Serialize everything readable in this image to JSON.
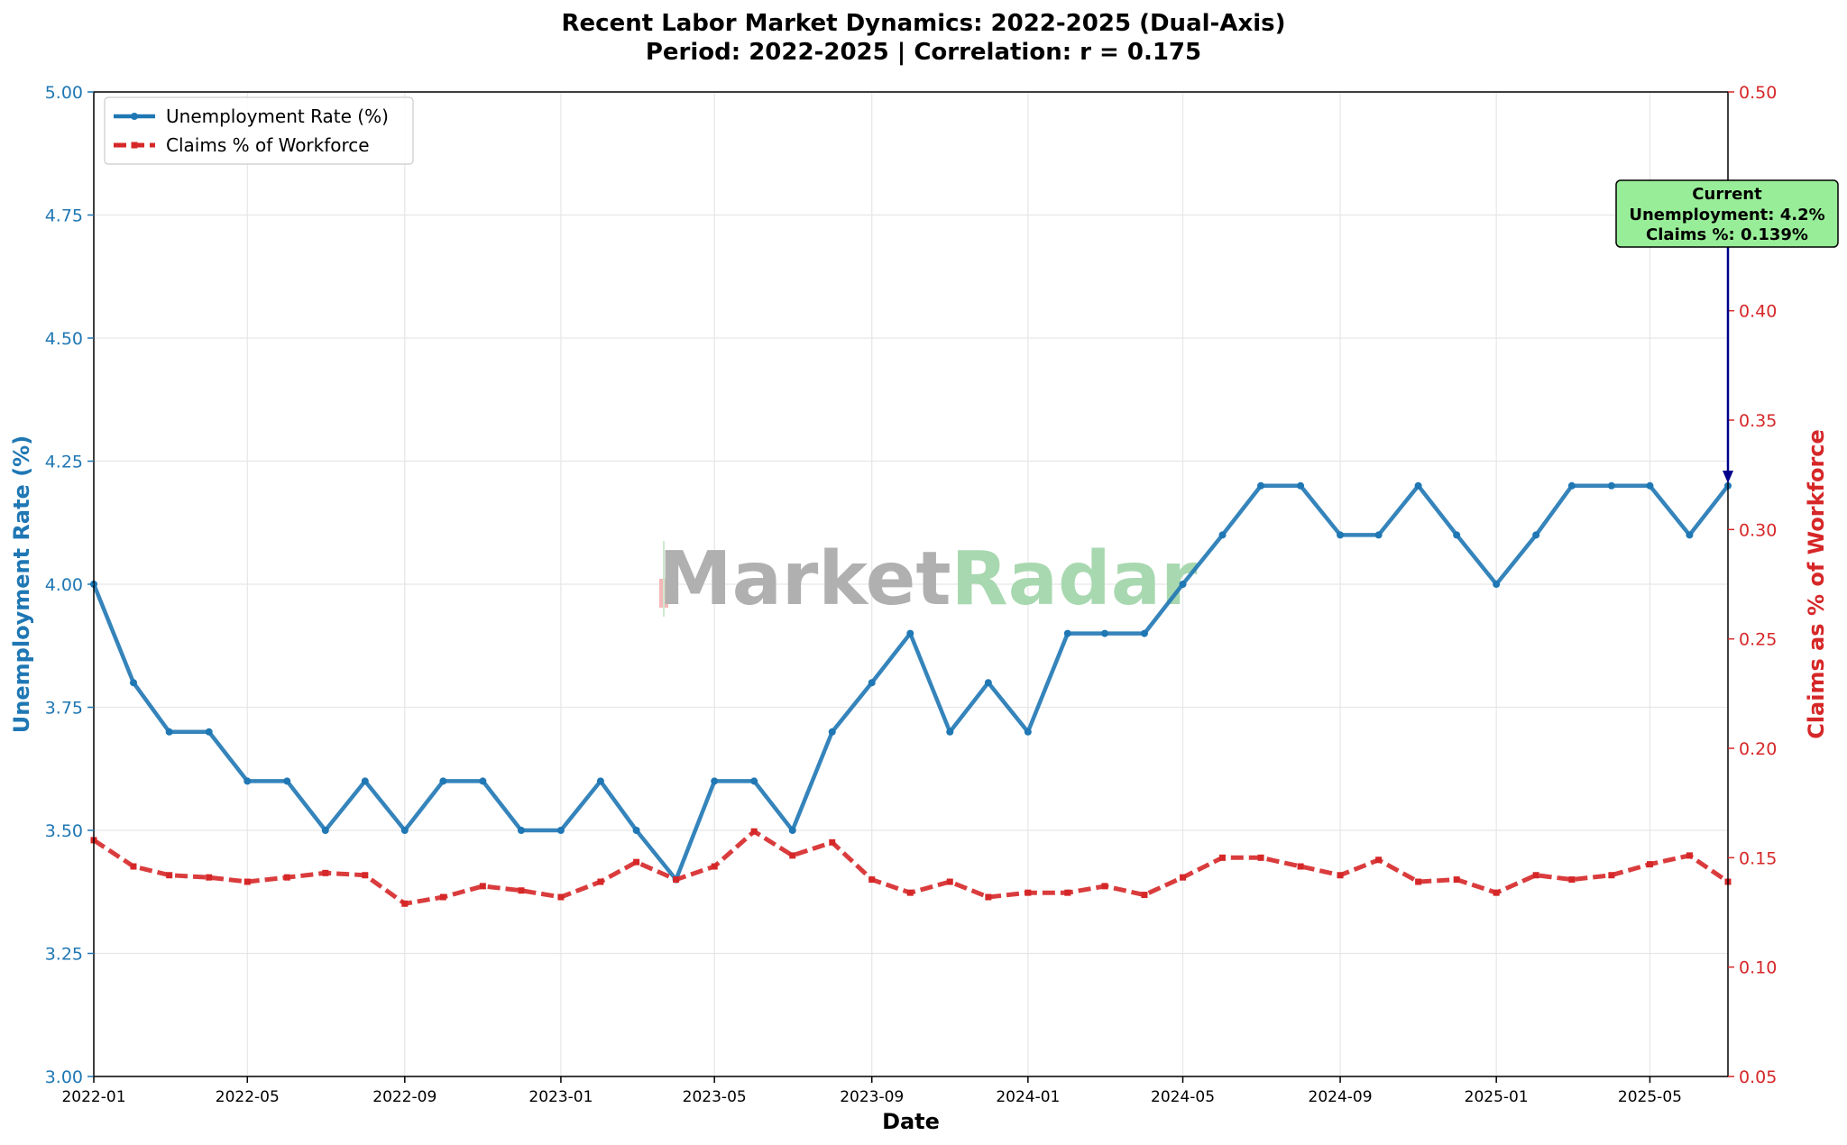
{
  "chart_data": {
    "type": "line",
    "title_line1": "Recent Labor Market Dynamics: 2022-2025 (Dual-Axis)",
    "title_line2": "Period: 2022-2025 | Correlation: r = 0.175",
    "xlabel": "Date",
    "ylabel_left": "Unemployment Rate (%)",
    "ylabel_right": "Claims as % of Workforce",
    "ylim_left": [
      3.0,
      5.0
    ],
    "ylim_right": [
      0.05,
      0.5
    ],
    "yticks_left": [
      "3.00",
      "3.25",
      "3.50",
      "3.75",
      "4.00",
      "4.25",
      "4.50",
      "4.75",
      "5.00"
    ],
    "yticks_right": [
      "0.05",
      "0.10",
      "0.15",
      "0.20",
      "0.25",
      "0.30",
      "0.35",
      "0.40",
      "0.45",
      "0.50"
    ],
    "xticks": [
      "2022-01",
      "2022-05",
      "2022-09",
      "2023-01",
      "2023-05",
      "2023-09",
      "2024-01",
      "2024-05",
      "2024-09",
      "2025-01",
      "2025-05"
    ],
    "grid": true,
    "legend_position": "upper-left",
    "x": [
      "2022-01",
      "2022-02",
      "2022-03",
      "2022-04",
      "2022-05",
      "2022-06",
      "2022-07",
      "2022-08",
      "2022-09",
      "2022-10",
      "2022-11",
      "2022-12",
      "2023-01",
      "2023-02",
      "2023-03",
      "2023-04",
      "2023-05",
      "2023-06",
      "2023-07",
      "2023-08",
      "2023-09",
      "2023-10",
      "2023-11",
      "2023-12",
      "2024-01",
      "2024-02",
      "2024-03",
      "2024-04",
      "2024-05",
      "2024-06",
      "2024-07",
      "2024-08",
      "2024-09",
      "2024-10",
      "2024-11",
      "2024-12",
      "2025-01",
      "2025-02",
      "2025-03",
      "2025-04",
      "2025-05",
      "2025-06",
      "2025-07"
    ],
    "series": [
      {
        "name": "Unemployment Rate (%)",
        "axis": "left",
        "color": "#1f77b4",
        "style": "solid",
        "values": [
          4.0,
          3.8,
          3.7,
          3.7,
          3.6,
          3.6,
          3.5,
          3.6,
          3.5,
          3.6,
          3.6,
          3.5,
          3.5,
          3.6,
          3.5,
          3.4,
          3.6,
          3.6,
          3.5,
          3.7,
          3.8,
          3.9,
          3.7,
          3.8,
          3.7,
          3.9,
          3.9,
          3.9,
          4.0,
          4.1,
          4.2,
          4.2,
          4.1,
          4.1,
          4.2,
          4.1,
          4.0,
          4.1,
          4.2,
          4.2,
          4.2,
          4.1,
          4.2
        ]
      },
      {
        "name": "Claims % of Workforce",
        "axis": "right",
        "color": "#d62728",
        "style": "dashed",
        "values": [
          0.158,
          0.146,
          0.142,
          0.141,
          0.139,
          0.141,
          0.143,
          0.142,
          0.129,
          0.132,
          0.137,
          0.135,
          0.132,
          0.139,
          0.148,
          0.14,
          0.146,
          0.162,
          0.151,
          0.157,
          0.14,
          0.134,
          0.139,
          0.132,
          0.134,
          0.134,
          0.137,
          0.133,
          0.141,
          0.15,
          0.15,
          0.146,
          0.142,
          0.149,
          0.139,
          0.14,
          0.134,
          0.142,
          0.14,
          0.142,
          0.147,
          0.151,
          0.139
        ]
      }
    ],
    "annotation": {
      "line1": "Current",
      "line2": "Unemployment: 4.2%",
      "line3": "Claims %: 0.139%",
      "box_color": "#98ee98",
      "arrow_color": "#00008b"
    },
    "watermark": {
      "part1": "Market",
      "part2": "Radar",
      "color1": "#b0b0b0",
      "color2": "#a8d8b0"
    }
  }
}
